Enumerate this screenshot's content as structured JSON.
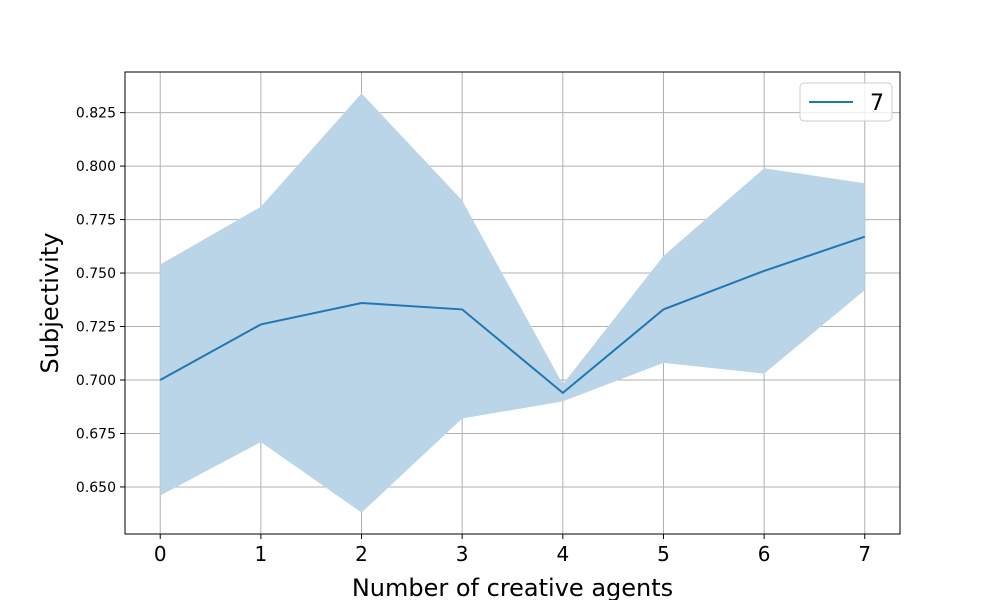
{
  "chart_data": {
    "type": "line",
    "xlabel": "Number of creative agents",
    "ylabel": "Subjectivity",
    "x": [
      0,
      1,
      2,
      3,
      4,
      5,
      6,
      7
    ],
    "xlim": [
      -0.35,
      7.35
    ],
    "ylim": [
      0.628,
      0.844
    ],
    "x_ticks": [
      0,
      1,
      2,
      3,
      4,
      5,
      6,
      7
    ],
    "y_ticks": [
      0.65,
      0.675,
      0.7,
      0.725,
      0.75,
      0.775,
      0.8,
      0.825
    ],
    "y_tick_labels": [
      "0.650",
      "0.675",
      "0.700",
      "0.725",
      "0.750",
      "0.775",
      "0.800",
      "0.825"
    ],
    "grid": true,
    "legend_position": "top-right",
    "series": [
      {
        "name": "7",
        "color": "#1f77b4",
        "values": [
          0.7,
          0.726,
          0.736,
          0.733,
          0.694,
          0.733,
          0.751,
          0.767
        ],
        "band_upper": [
          0.754,
          0.781,
          0.834,
          0.784,
          0.698,
          0.758,
          0.799,
          0.792
        ],
        "band_lower": [
          0.646,
          0.671,
          0.638,
          0.682,
          0.69,
          0.708,
          0.703,
          0.742
        ],
        "band_color": "#bad5e8"
      }
    ]
  }
}
